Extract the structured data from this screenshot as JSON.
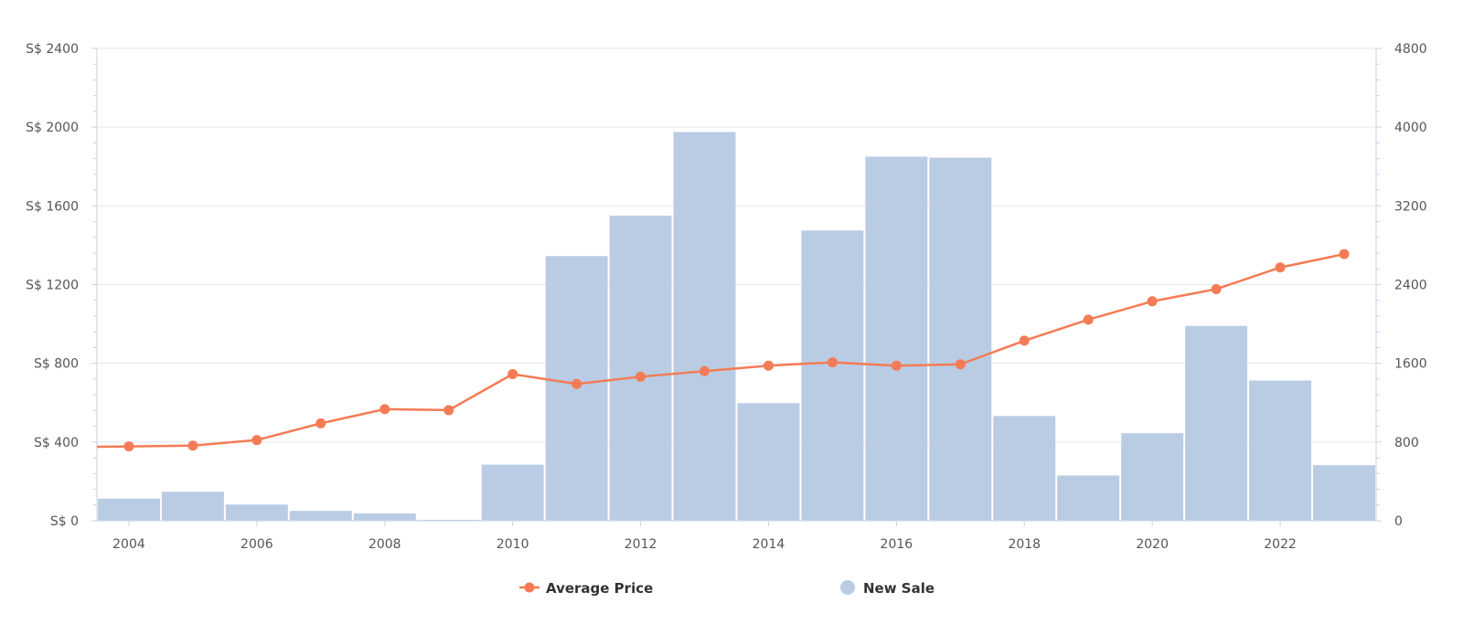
{
  "chart_data": {
    "type": "bar",
    "title": "",
    "xlabel": "",
    "categories": [
      "2004",
      "2005",
      "2006",
      "2007",
      "2008",
      "2009",
      "2010",
      "2011",
      "2012",
      "2013",
      "2014",
      "2015",
      "2016",
      "2017",
      "2018",
      "2019",
      "2020",
      "2021",
      "2022",
      "2023"
    ],
    "x_tick_labels": [
      "2004",
      "2006",
      "2008",
      "2010",
      "2012",
      "2014",
      "2016",
      "2018",
      "2020",
      "2022"
    ],
    "y_left": {
      "ylim": [
        0,
        2400
      ],
      "tick_labels": [
        "S$ 0",
        "S$ 400",
        "S$ 800",
        "S$ 1200",
        "S$ 1600",
        "S$ 2000",
        "S$ 2400"
      ]
    },
    "y_right": {
      "ylim": [
        0,
        4800
      ],
      "tick_labels": [
        "0",
        "800",
        "1600",
        "2400",
        "3200",
        "4000",
        "4800"
      ]
    },
    "grid": true,
    "legend_position": "bottom-center",
    "series": [
      {
        "name": "Average Price",
        "type": "line",
        "axis": "left",
        "color": "#f47b55",
        "values": [
          378,
          382,
          410,
          495,
          567,
          562,
          745,
          695,
          732,
          760,
          788,
          805,
          788,
          795,
          915,
          1022,
          1115,
          1177,
          1287,
          1355
        ]
      },
      {
        "name": "New Sale",
        "type": "bar",
        "axis": "right",
        "color": "#b9cce4",
        "values": [
          225,
          295,
          165,
          100,
          75,
          10,
          570,
          2690,
          3100,
          3950,
          1195,
          2950,
          3700,
          3690,
          1065,
          460,
          890,
          1980,
          1425,
          565
        ]
      }
    ]
  }
}
